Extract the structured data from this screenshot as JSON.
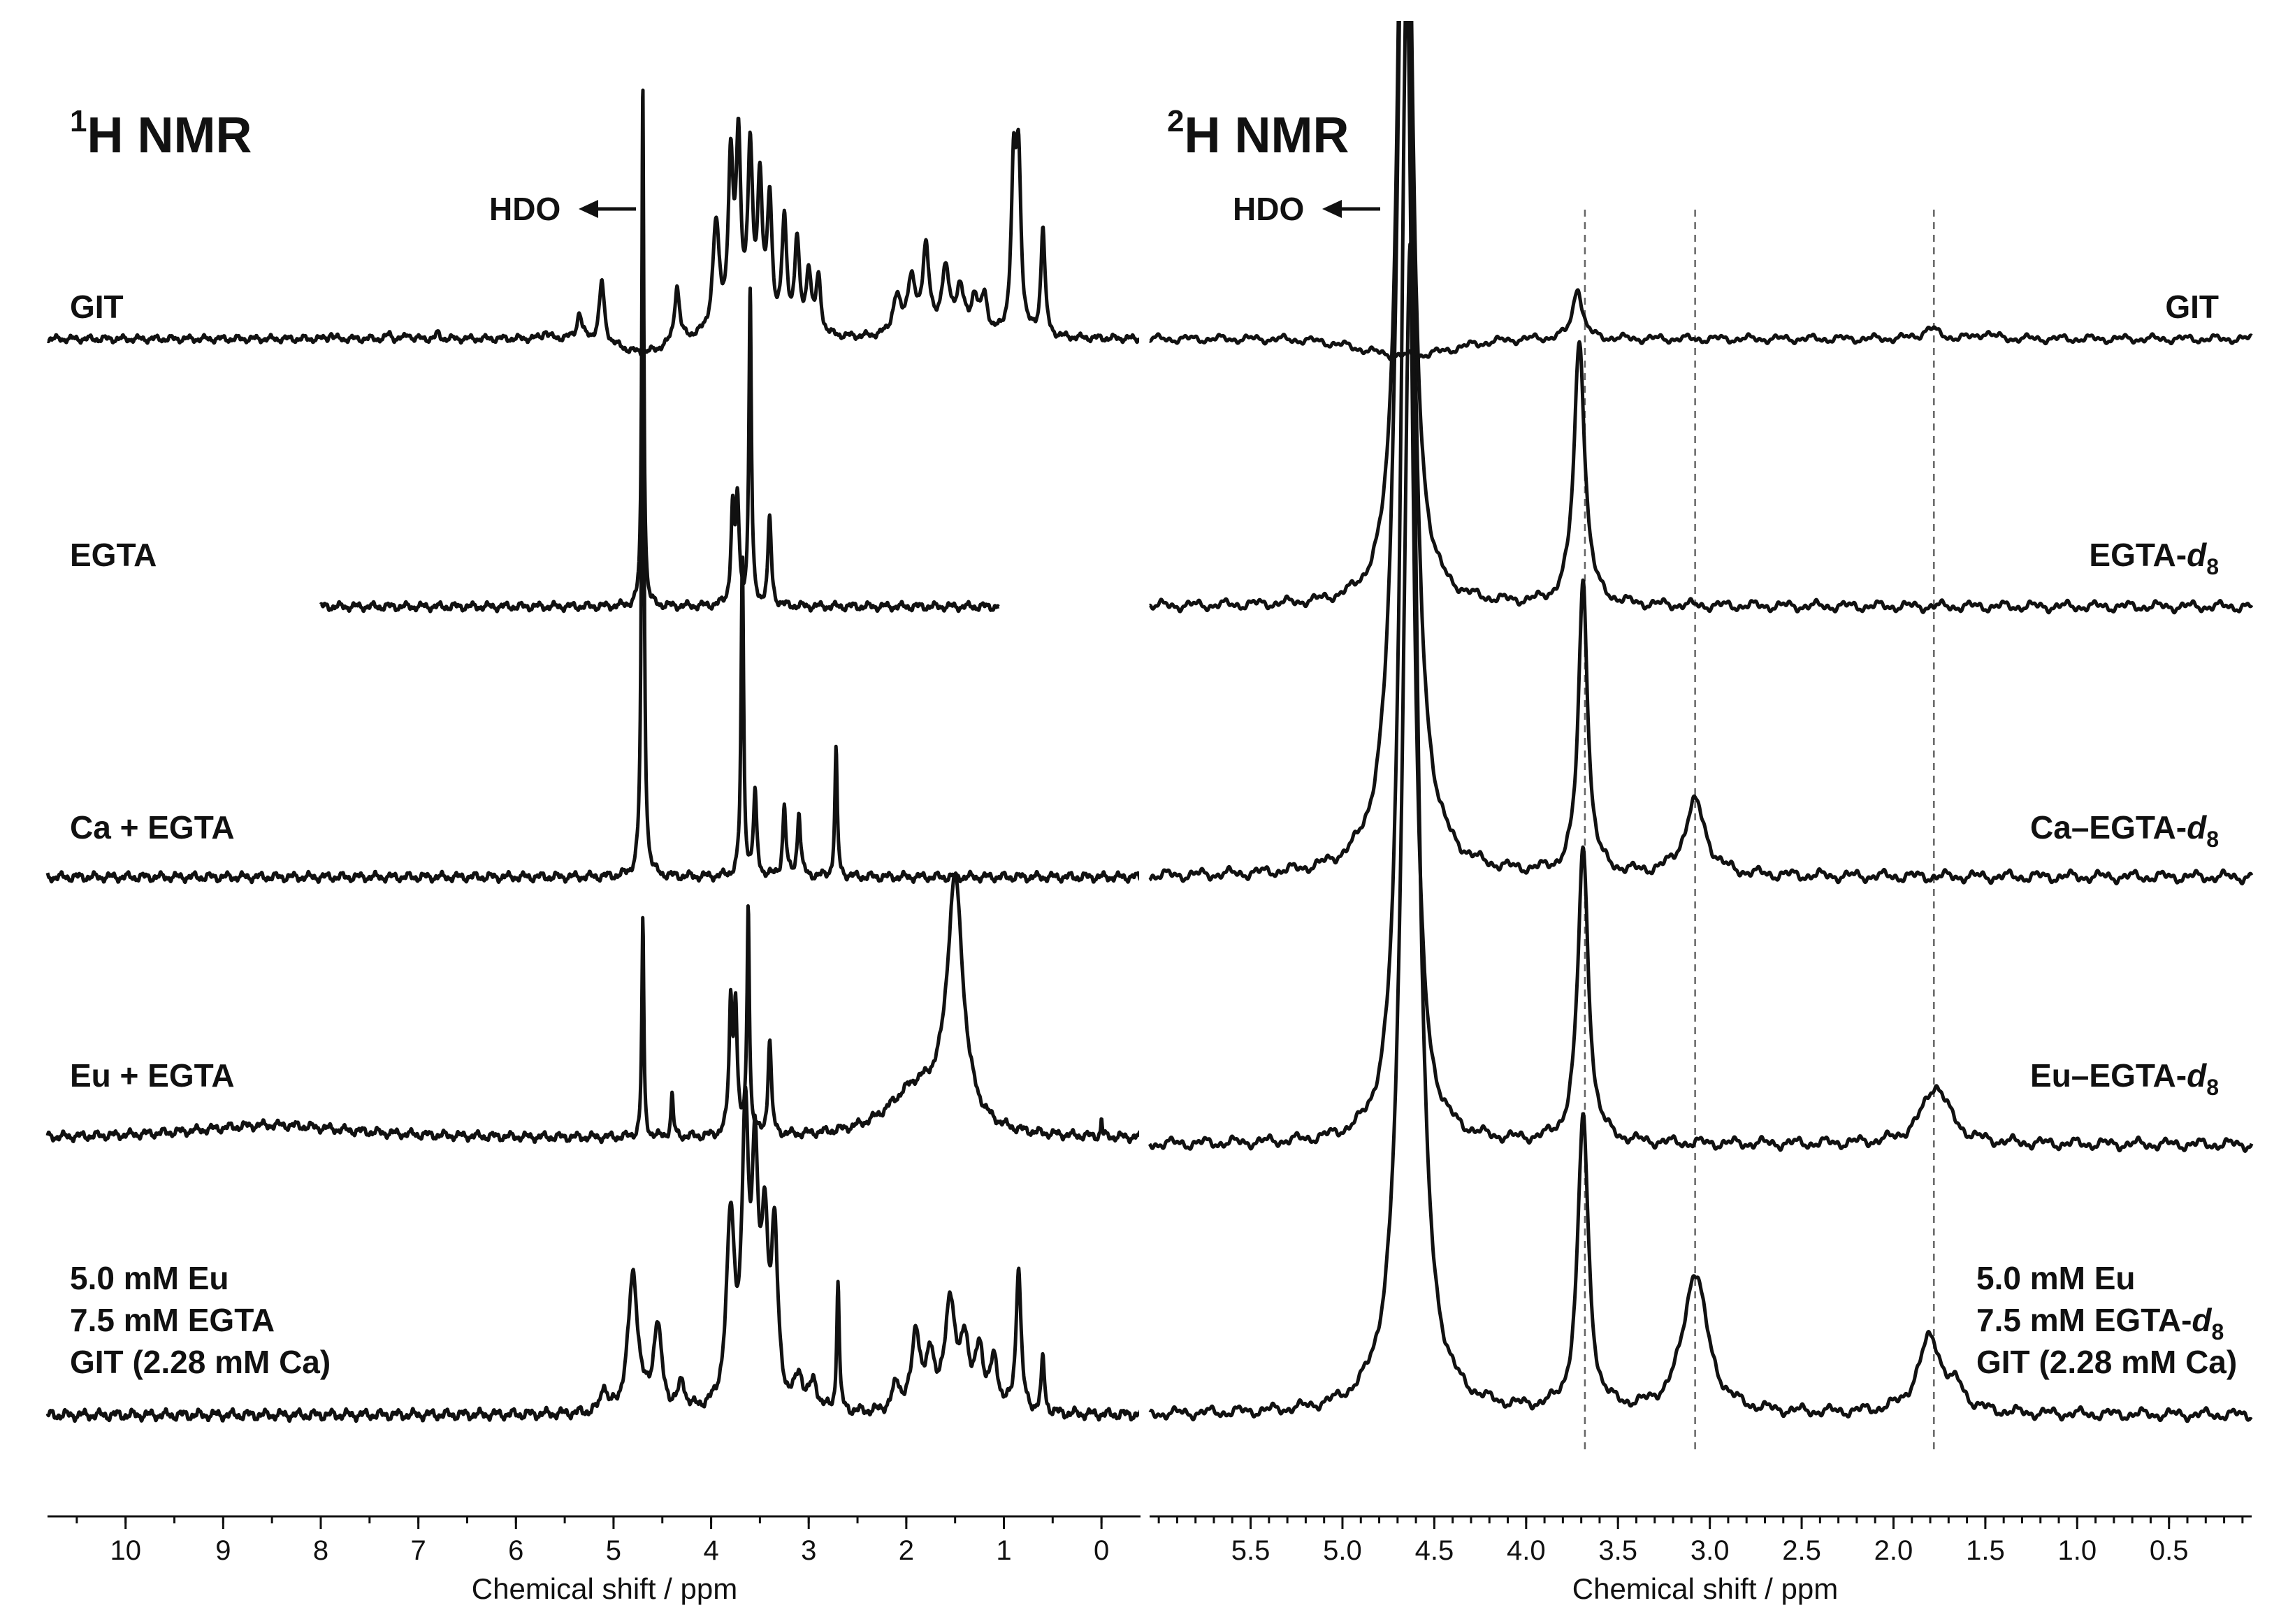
{
  "chart_data": [
    {
      "type": "line",
      "title": "¹H NMR",
      "title_parts": {
        "sup": "1",
        "main": "H NMR"
      },
      "xlabel": "Chemical shift / ppm",
      "xlim": [
        10.8,
        -0.4
      ],
      "x_reversed": true,
      "ticks": [
        10,
        9,
        8,
        7,
        6,
        5,
        4,
        3,
        2,
        1,
        0
      ],
      "tick_labels": [
        "10",
        "9",
        "8",
        "7",
        "6",
        "5",
        "4",
        "3",
        "2",
        "1",
        "0"
      ],
      "annotation": {
        "text": "HDO",
        "ppm": 4.7
      },
      "series": [
        {
          "name": "GIT",
          "x_range": [
            10.8,
            -0.4
          ],
          "peaks": [
            [
              7.9,
              0.02,
              0.03
            ],
            [
              7.3,
              0.02,
              0.03
            ],
            [
              7.1,
              0.02,
              0.03
            ],
            [
              6.8,
              0.02,
              0.03
            ],
            [
              5.7,
              0.03,
              0.04
            ],
            [
              5.35,
              0.03,
              0.14
            ],
            [
              5.12,
              0.03,
              0.33
            ],
            [
              4.35,
              0.03,
              0.31
            ],
            [
              3.95,
              0.04,
              0.6
            ],
            [
              3.8,
              0.03,
              0.9
            ],
            [
              3.72,
              0.03,
              1.0
            ],
            [
              3.6,
              0.03,
              0.95
            ],
            [
              3.5,
              0.03,
              0.8
            ],
            [
              3.4,
              0.03,
              0.7
            ],
            [
              3.25,
              0.03,
              0.6
            ],
            [
              3.12,
              0.03,
              0.5
            ],
            [
              3.0,
              0.03,
              0.35
            ],
            [
              2.9,
              0.03,
              0.3
            ],
            [
              2.1,
              0.05,
              0.2
            ],
            [
              1.95,
              0.05,
              0.3
            ],
            [
              1.8,
              0.04,
              0.48
            ],
            [
              1.6,
              0.05,
              0.35
            ],
            [
              1.45,
              0.05,
              0.25
            ],
            [
              1.3,
              0.04,
              0.2
            ],
            [
              1.2,
              0.04,
              0.2
            ],
            [
              0.9,
              0.03,
              0.85
            ],
            [
              0.85,
              0.03,
              0.9
            ],
            [
              0.6,
              0.025,
              0.6
            ]
          ],
          "hdo_ppm": 4.7
        },
        {
          "name": "EGTA",
          "x_range": [
            8.0,
            1.05
          ],
          "peaks": [
            [
              4.7,
              0.012,
              2.5
            ],
            [
              3.78,
              0.02,
              0.45
            ],
            [
              3.73,
              0.02,
              0.48
            ],
            [
              3.6,
              0.015,
              1.5
            ],
            [
              3.4,
              0.02,
              0.42
            ]
          ]
        },
        {
          "name": "Ca + EGTA",
          "x_range": [
            10.8,
            -0.4
          ],
          "peaks": [
            [
              4.7,
              0.015,
              2.8
            ],
            [
              3.68,
              0.015,
              1.4
            ],
            [
              3.55,
              0.02,
              0.35
            ],
            [
              3.25,
              0.02,
              0.3
            ],
            [
              3.1,
              0.02,
              0.28
            ],
            [
              2.72,
              0.015,
              0.55
            ]
          ]
        },
        {
          "name": "Eu + EGTA",
          "x_range": [
            10.8,
            -0.4
          ],
          "peaks": [
            [
              8.5,
              1.0,
              0.06
            ],
            [
              4.7,
              0.012,
              0.95
            ],
            [
              4.4,
              0.015,
              0.18
            ],
            [
              3.8,
              0.02,
              0.55
            ],
            [
              3.75,
              0.02,
              0.55
            ],
            [
              3.62,
              0.015,
              1.0
            ],
            [
              3.4,
              0.02,
              0.42
            ],
            [
              1.9,
              0.35,
              0.2
            ],
            [
              1.5,
              0.1,
              1.05
            ],
            [
              0.0,
              0.008,
              0.08
            ]
          ]
        },
        {
          "name": "5.0 mM Eu\n7.5 mM EGTA\nGIT (2.28 mM Ca)",
          "label_lines": [
            "5.0 mM Eu",
            "7.5 mM EGTA",
            "GIT (2.28 mM Ca)"
          ],
          "x_range": [
            10.8,
            -0.4
          ],
          "peaks": [
            [
              5.1,
              0.03,
              0.1
            ],
            [
              4.8,
              0.06,
              0.52
            ],
            [
              4.55,
              0.05,
              0.32
            ],
            [
              4.3,
              0.04,
              0.1
            ],
            [
              3.8,
              0.05,
              0.7
            ],
            [
              3.65,
              0.04,
              1.0
            ],
            [
              3.55,
              0.04,
              0.85
            ],
            [
              3.45,
              0.04,
              0.6
            ],
            [
              3.35,
              0.04,
              0.62
            ],
            [
              3.1,
              0.05,
              0.12
            ],
            [
              2.95,
              0.05,
              0.1
            ],
            [
              2.7,
              0.015,
              0.5
            ],
            [
              2.1,
              0.05,
              0.1
            ],
            [
              1.9,
              0.05,
              0.3
            ],
            [
              1.75,
              0.05,
              0.2
            ],
            [
              1.55,
              0.06,
              0.42
            ],
            [
              1.4,
              0.05,
              0.25
            ],
            [
              1.25,
              0.05,
              0.22
            ],
            [
              1.1,
              0.05,
              0.18
            ],
            [
              0.85,
              0.03,
              0.55
            ],
            [
              0.6,
              0.02,
              0.2
            ]
          ]
        }
      ]
    },
    {
      "type": "line",
      "title": "²H NMR",
      "title_parts": {
        "sup": "2",
        "main": "H NMR"
      },
      "xlabel": "Chemical shift / ppm",
      "xlim": [
        6.05,
        0.05
      ],
      "x_reversed": true,
      "ticks": [
        5.5,
        5.0,
        4.5,
        4.0,
        3.5,
        3.0,
        2.5,
        2.0,
        1.5,
        1.0,
        0.5
      ],
      "tick_labels": [
        "5.5",
        "5.0",
        "4.5",
        "4.0",
        "3.5",
        "3.0",
        "2.5",
        "2.0",
        "1.5",
        "1.0",
        "0.5"
      ],
      "annotation": {
        "text": "HDO",
        "ppm": 4.65
      },
      "guide_lines_ppm": [
        3.68,
        3.08,
        1.78
      ],
      "series": [
        {
          "name": "GIT",
          "x_range": [
            6.05,
            0.05
          ],
          "peaks": [
            [
              3.72,
              0.03,
              0.25
            ],
            [
              1.8,
              0.05,
              0.05
            ],
            [
              1.5,
              0.04,
              0.03
            ]
          ],
          "hdo_ppm": 4.65
        },
        {
          "name": "EGTA-d8",
          "label_main": "EGTA-",
          "label_italic": "d",
          "label_sub": "8",
          "x_range": [
            6.05,
            0.05
          ],
          "peaks": [
            [
              4.66,
              0.04,
              4.0
            ],
            [
              3.71,
              0.035,
              1.0
            ]
          ]
        },
        {
          "name": "Ca–EGTA-d8",
          "label_main": "Ca–EGTA-",
          "label_italic": "d",
          "label_sub": "8",
          "x_range": [
            6.05,
            0.05
          ],
          "peaks": [
            [
              4.66,
              0.05,
              4.0
            ],
            [
              3.69,
              0.03,
              1.0
            ],
            [
              3.08,
              0.07,
              0.25
            ]
          ]
        },
        {
          "name": "Eu–EGTA-d8",
          "label_main": "Eu–EGTA-",
          "label_italic": "d",
          "label_sub": "8",
          "x_range": [
            6.05,
            0.05
          ],
          "peaks": [
            [
              4.65,
              0.04,
              4.0
            ],
            [
              3.69,
              0.035,
              1.0
            ],
            [
              1.77,
              0.09,
              0.2
            ]
          ]
        },
        {
          "name": "5.0 mM Eu\n7.5 mM EGTA-d8\nGIT (2.28 mM Ca)",
          "label_lines": [
            "5.0 mM Eu",
            "7.5 mM EGTA-",
            "GIT (2.28 mM Ca)"
          ],
          "label_line2_italic": "d",
          "label_line2_sub": "8",
          "x_range": [
            6.05,
            0.05
          ],
          "peaks": [
            [
              4.63,
              0.05,
              4.0
            ],
            [
              3.69,
              0.035,
              1.0
            ],
            [
              3.08,
              0.08,
              0.48
            ],
            [
              1.8,
              0.08,
              0.26
            ],
            [
              1.65,
              0.05,
              0.06
            ]
          ]
        }
      ]
    }
  ]
}
